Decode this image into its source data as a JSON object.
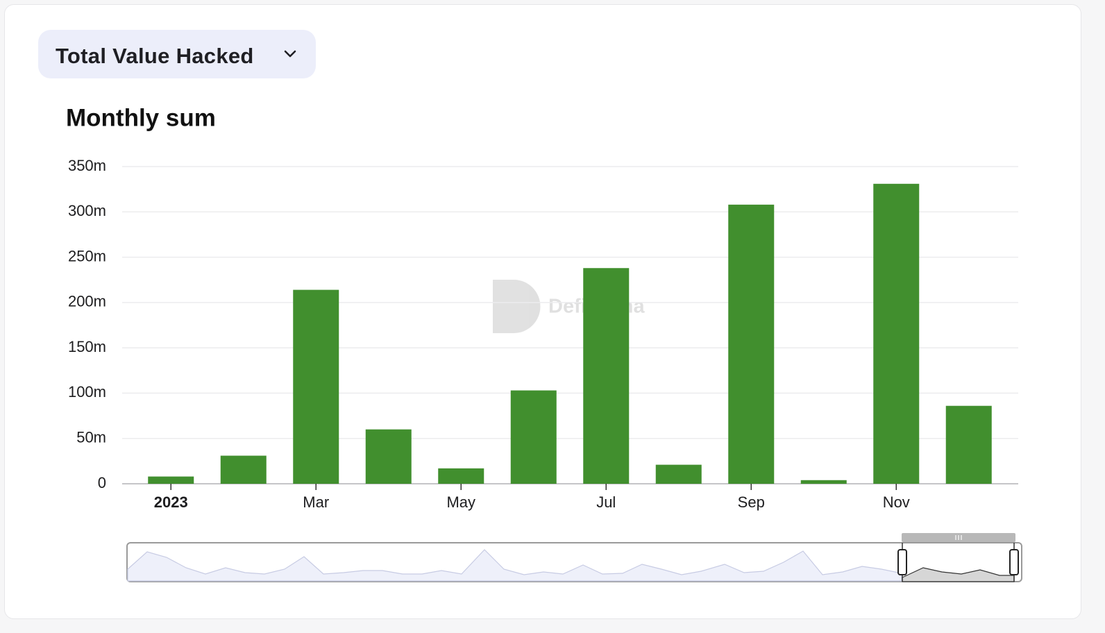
{
  "selector": {
    "label": "Total Value Hacked"
  },
  "chart_data": {
    "type": "bar",
    "title": "Monthly sum",
    "watermark": "DefiLlama",
    "categories": [
      "2023",
      null,
      "Mar",
      null,
      "May",
      null,
      "Jul",
      null,
      "Sep",
      null,
      "Nov",
      null
    ],
    "values": [
      8,
      31,
      214,
      60,
      17,
      103,
      238,
      21,
      308,
      4,
      331,
      86
    ],
    "color": "#418f2e",
    "ylim": [
      0,
      350
    ],
    "yticks": [
      0,
      {
        "value": 50,
        "label": "50m"
      },
      {
        "value": 100,
        "label": "100m"
      },
      {
        "value": 150,
        "label": "150m"
      },
      {
        "value": 200,
        "label": "200m"
      },
      {
        "value": 250,
        "label": "250m"
      },
      {
        "value": 300,
        "label": "300m"
      },
      {
        "value": 350,
        "label": "350m"
      }
    ],
    "grid": true
  }
}
